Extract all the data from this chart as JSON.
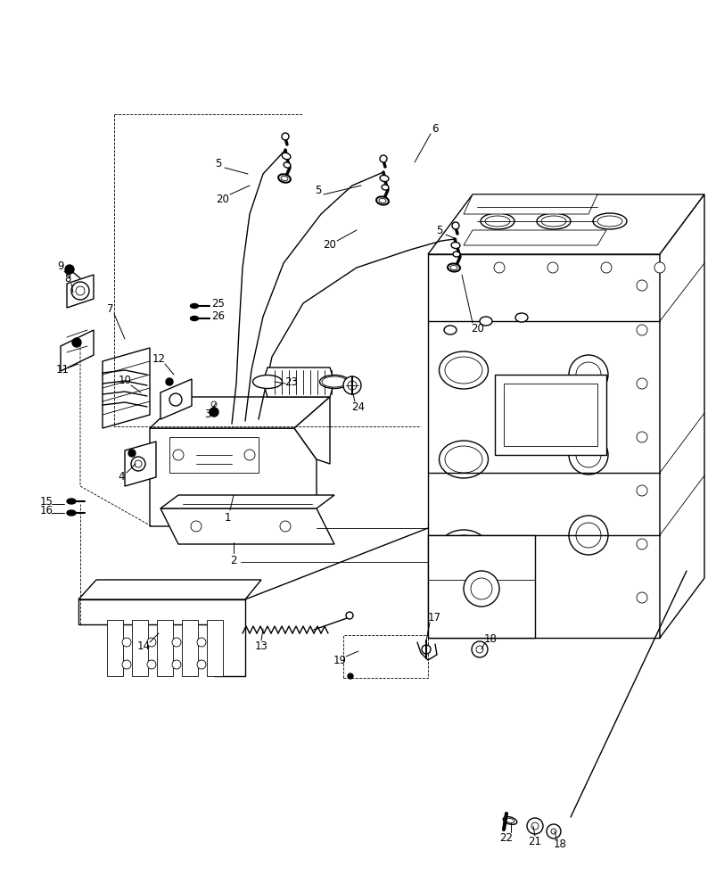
{
  "bg_color": "#ffffff",
  "line_color": "#000000",
  "lw_main": 1.0,
  "lw_thin": 0.6,
  "lw_thick": 1.5,
  "fs": 8.5
}
